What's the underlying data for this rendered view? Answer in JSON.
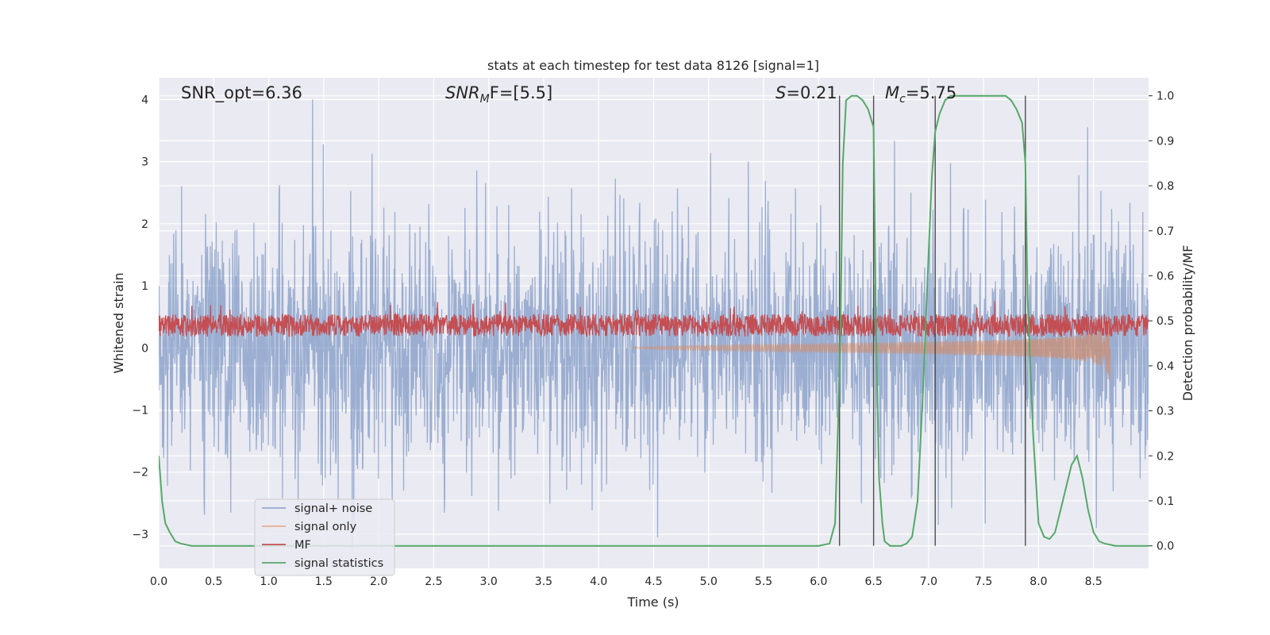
{
  "chart_data": {
    "type": "line",
    "title": "stats at each timestep for test data 8126 [signal=1]",
    "xlabel": "Time (s)",
    "ylabel_left": "Whitened strain",
    "ylabel_right": "Detection probability/MF",
    "xlim": [
      0.0,
      9.0
    ],
    "ylim_left": [
      -3.55,
      4.35
    ],
    "ylim_right": [
      -0.05,
      1.04
    ],
    "x_ticks": [
      0.0,
      0.5,
      1.0,
      1.5,
      2.0,
      2.5,
      3.0,
      3.5,
      4.0,
      4.5,
      5.0,
      5.5,
      6.0,
      6.5,
      7.0,
      7.5,
      8.0,
      8.5
    ],
    "x_tick_labels": [
      "0.0",
      "0.5",
      "1.0",
      "1.5",
      "2.0",
      "2.5",
      "3.0",
      "3.5",
      "4.0",
      "4.5",
      "5.0",
      "5.5",
      "6.0",
      "6.5",
      "7.0",
      "7.5",
      "8.0",
      "8.5"
    ],
    "y_left_ticks": [
      -3,
      -2,
      -1,
      0,
      1,
      2,
      3,
      4
    ],
    "y_left_tick_labels": [
      "−3",
      "−2",
      "−1",
      "0",
      "1",
      "2",
      "3",
      "4"
    ],
    "y_right_ticks": [
      0.0,
      0.1,
      0.2,
      0.3,
      0.4,
      0.5,
      0.6,
      0.7,
      0.8,
      0.9,
      1.0
    ],
    "y_right_tick_labels": [
      "0.0",
      "0.1",
      "0.2",
      "0.3",
      "0.4",
      "0.5",
      "0.6",
      "0.7",
      "0.8",
      "0.9",
      "1.0"
    ],
    "annotations": {
      "snr_opt": "SNR_opt=6.36",
      "snr_mf_main": "SNR",
      "snr_mf_sub": "M",
      "snr_mf_rest": "F=[5.5]",
      "s_main": "S",
      "s_rest": "=0.21",
      "mc_main": "M",
      "mc_sub": "c",
      "mc_rest": "=5.75"
    },
    "vertical_lines": [
      6.19,
      6.5,
      7.06,
      7.88
    ],
    "series": [
      {
        "name": "signal+ noise",
        "axis": "left",
        "color": "#4c72b0",
        "description": "noise band roughly between -2.2 and 2.2 with peaks to about 4"
      },
      {
        "name": "signal only",
        "axis": "left",
        "color": "#dd8452",
        "description": "chirp growing from ~0 at t=4.3 to amplitude ~0.6 at t=8.65"
      },
      {
        "name": "MF",
        "axis": "right",
        "color": "#c44e52",
        "description": "band around 0.46-0.52 on right axis"
      },
      {
        "name": "signal statistics",
        "axis": "right",
        "color": "#55a868",
        "x": [
          0.0,
          0.03,
          0.06,
          0.1,
          0.15,
          0.2,
          0.3,
          0.5,
          1.0,
          2.0,
          3.0,
          4.0,
          5.0,
          5.8,
          6.0,
          6.1,
          6.15,
          6.18,
          6.2,
          6.22,
          6.25,
          6.3,
          6.35,
          6.4,
          6.45,
          6.5,
          6.52,
          6.55,
          6.58,
          6.6,
          6.65,
          6.7,
          6.75,
          6.8,
          6.85,
          6.9,
          6.95,
          7.0,
          7.03,
          7.06,
          7.1,
          7.15,
          7.2,
          7.25,
          7.3,
          7.4,
          7.5,
          7.6,
          7.7,
          7.75,
          7.8,
          7.85,
          7.88,
          7.9,
          7.95,
          8.0,
          8.05,
          8.1,
          8.15,
          8.2,
          8.25,
          8.3,
          8.35,
          8.4,
          8.45,
          8.5,
          8.55,
          8.6,
          8.7,
          8.8,
          8.9,
          9.0
        ],
        "y": [
          0.2,
          0.1,
          0.05,
          0.03,
          0.01,
          0.005,
          0.0,
          0.0,
          0.0,
          0.0,
          0.0,
          0.0,
          0.0,
          0.0,
          0.0,
          0.005,
          0.05,
          0.3,
          0.5,
          0.85,
          0.99,
          1.0,
          1.0,
          0.99,
          0.97,
          0.93,
          0.5,
          0.15,
          0.05,
          0.01,
          0.0,
          0.0,
          0.0,
          0.005,
          0.02,
          0.1,
          0.35,
          0.65,
          0.82,
          0.92,
          0.96,
          0.99,
          1.0,
          1.0,
          1.0,
          1.0,
          1.0,
          1.0,
          1.0,
          0.99,
          0.97,
          0.94,
          0.85,
          0.55,
          0.25,
          0.05,
          0.02,
          0.015,
          0.03,
          0.08,
          0.13,
          0.18,
          0.2,
          0.15,
          0.08,
          0.03,
          0.01,
          0.005,
          0.0,
          0.0,
          0.0,
          0.0
        ]
      }
    ],
    "legend": [
      "signal+ noise",
      "signal only",
      "MF",
      "signal statistics"
    ],
    "legend_position": "lower-left",
    "grid": true
  }
}
